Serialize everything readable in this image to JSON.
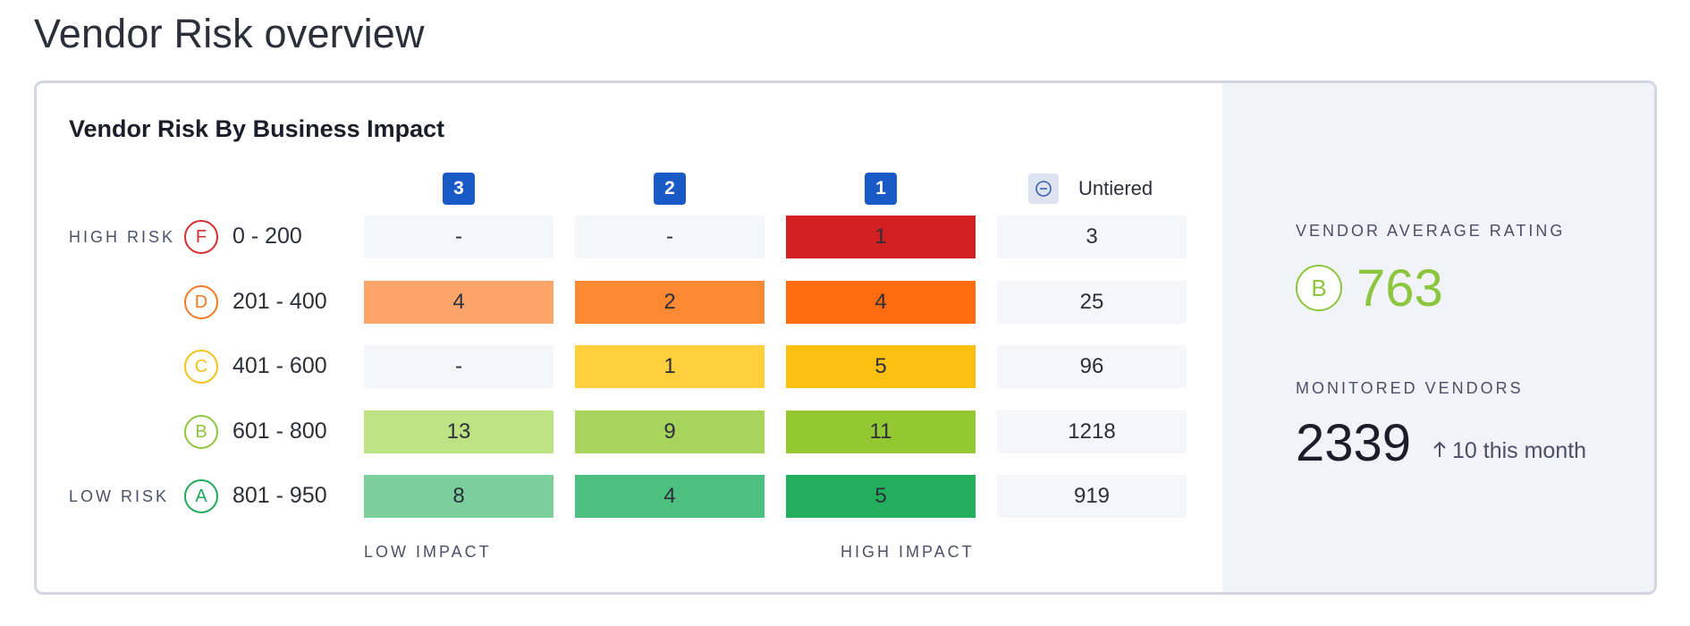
{
  "page_title": "Vendor Risk overview",
  "card": {
    "title": "Vendor Risk By Business Impact",
    "columns": [
      "3",
      "2",
      "1",
      "Untiered"
    ],
    "high_risk_label": "HIGH RISK",
    "low_risk_label": "LOW RISK",
    "low_impact_label": "LOW IMPACT",
    "high_impact_label": "HIGH IMPACT",
    "rows": [
      {
        "grade": "F",
        "range": "0 - 200",
        "cells": [
          "-",
          "-",
          "1",
          "3"
        ]
      },
      {
        "grade": "D",
        "range": "201 - 400",
        "cells": [
          "4",
          "2",
          "4",
          "25"
        ]
      },
      {
        "grade": "C",
        "range": "401 - 600",
        "cells": [
          "-",
          "1",
          "5",
          "96"
        ]
      },
      {
        "grade": "B",
        "range": "601 - 800",
        "cells": [
          "13",
          "9",
          "11",
          "1218"
        ]
      },
      {
        "grade": "A",
        "range": "801 - 950",
        "cells": [
          "8",
          "4",
          "5",
          "919"
        ]
      }
    ],
    "untiered_icon": "minus-circle-icon"
  },
  "summary": {
    "avg_rating_label": "VENDOR AVERAGE RATING",
    "avg_grade": "B",
    "avg_score": "763",
    "monitored_label": "MONITORED VENDORS",
    "monitored_count": "2339",
    "monitored_delta": "10 this month",
    "delta_icon": "arrow-up-icon"
  },
  "colors": {
    "grade_F": "#d32f2f",
    "grade_D": "#f07a25",
    "grade_C": "#f3c21c",
    "grade_B": "#8cc63e",
    "grade_A": "#22a85a",
    "tier_badge": "#1a5ac6",
    "empty_cell": "#f5f6f9",
    "heat": [
      [
        "#f5f6f9",
        "#f5f6f9",
        "#d21f20",
        "#f5f6f9"
      ],
      [
        "#fca56a",
        "#fd8a33",
        "#ff6b0e",
        "#f5f6f9"
      ],
      [
        "#f5f6f9",
        "#ffd03c",
        "#fbbf0f",
        "#f5f6f9"
      ],
      [
        "#bce283",
        "#a6d45c",
        "#93c833",
        "#f5f6f9"
      ],
      [
        "#7ccf9d",
        "#4dbf7f",
        "#22b05c",
        "#f5f6f9"
      ]
    ]
  }
}
